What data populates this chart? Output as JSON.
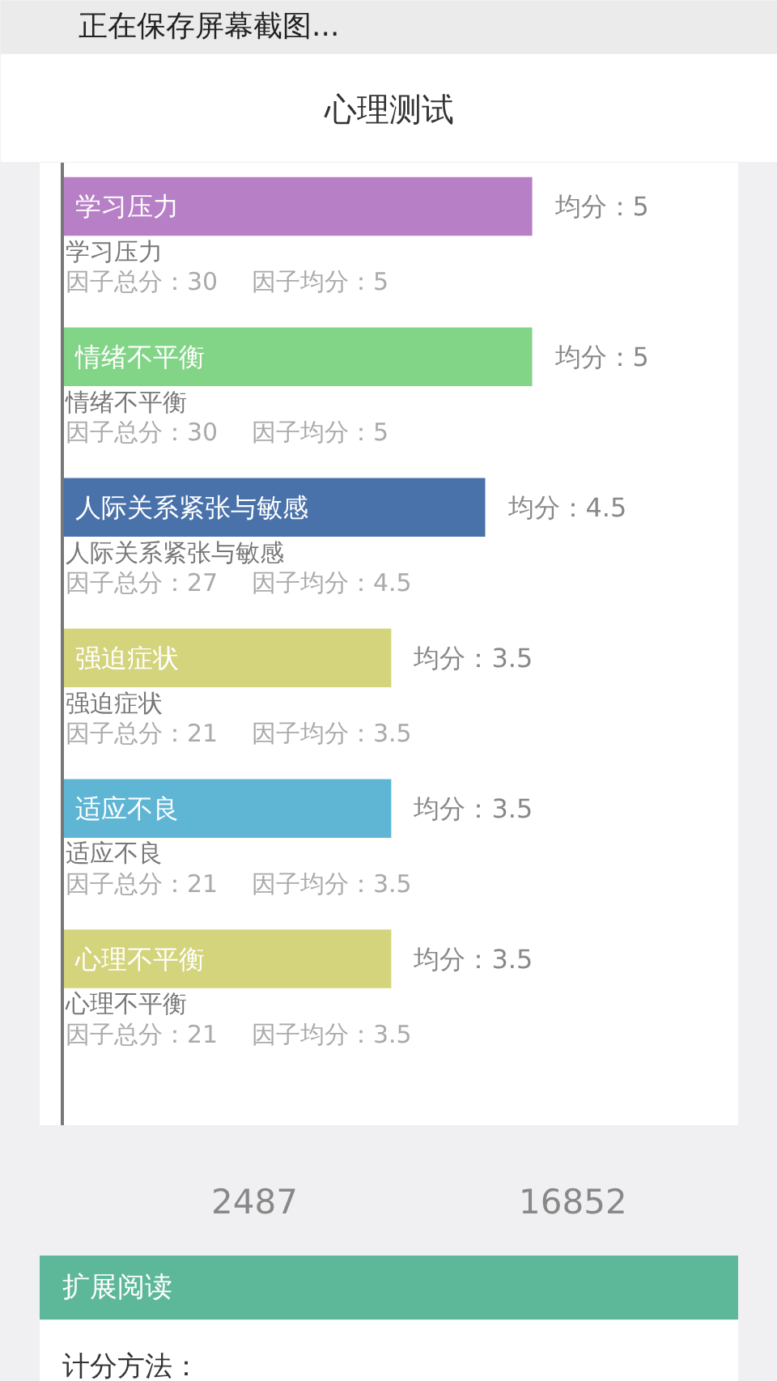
{
  "chart_data": {
    "type": "bar",
    "orientation": "horizontal",
    "title": "心理测试",
    "categories": [
      "学习压力",
      "情绪不平衡",
      "人际关系紧张与敏感",
      "强迫症状",
      "适应不良",
      "心理不平衡"
    ],
    "values": [
      5,
      5,
      4.5,
      3.5,
      3.5,
      3.5
    ],
    "colors": [
      "#b77fc6",
      "#82d487",
      "#4a72aa",
      "#d4d47d",
      "#5fb5d4",
      "#d4d47d"
    ],
    "value_labels": [
      "均分：5",
      "均分：5",
      "均分：4.5",
      "均分：3.5",
      "均分：3.5",
      "均分：3.5"
    ],
    "xlim": [
      0,
      7.2
    ],
    "tick_labels": false,
    "annotations": [
      "正在保存屏幕截图...",
      "2487",
      "16852",
      "扩展阅读",
      "计分方法：",
      "学习压力",
      "因子总分：30",
      "因子均分：5",
      "情绪不平衡",
      "因子总分：30",
      "因子均分：5",
      "人际关系紧张与敏感",
      "因子总分：27",
      "因子均分：4.5",
      "强迫症状",
      "因子总分：21",
      "因子均分：3.5",
      "适应不良",
      "因子总分：21",
      "因子均分：3.5",
      "心理不平衡",
      "因子总分：21",
      "因子均分：3.5"
    ]
  }
}
